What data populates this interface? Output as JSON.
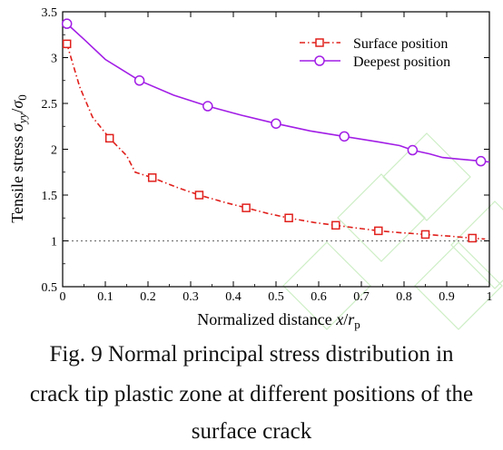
{
  "chart_data": {
    "type": "line",
    "xlabel": "Normalized distance x/r_p",
    "ylabel": "Tensile stress σ_yy/σ_0",
    "xlim": [
      0,
      1
    ],
    "ylim": [
      0.5,
      3.5
    ],
    "xticks": [
      "0",
      "0.1",
      "0.2",
      "0.3",
      "0.4",
      "0.5",
      "0.6",
      "0.7",
      "0.8",
      "0.9",
      "1"
    ],
    "yticks": [
      "0.5",
      "1",
      "1.5",
      "2",
      "2.5",
      "3",
      "3.5"
    ],
    "legend_position": "top-right",
    "reference_line": {
      "y": 1.0,
      "style": "dotted",
      "color": "#777777"
    },
    "series": [
      {
        "name": "Surface position",
        "color": "#e0201c",
        "marker": "square",
        "line_style": "dash-dot",
        "x": [
          0.01,
          0.04,
          0.07,
          0.11,
          0.15,
          0.17,
          0.21,
          0.27,
          0.32,
          0.38,
          0.43,
          0.48,
          0.53,
          0.59,
          0.64,
          0.69,
          0.74,
          0.79,
          0.85,
          0.91,
          0.96,
          0.99
        ],
        "y": [
          3.15,
          2.68,
          2.35,
          2.12,
          1.93,
          1.75,
          1.69,
          1.58,
          1.5,
          1.42,
          1.36,
          1.3,
          1.25,
          1.2,
          1.17,
          1.14,
          1.11,
          1.09,
          1.07,
          1.05,
          1.03,
          1.02
        ],
        "marker_x": [
          0.01,
          0.11,
          0.21,
          0.32,
          0.43,
          0.53,
          0.64,
          0.74,
          0.85,
          0.96
        ],
        "marker_y": [
          3.15,
          2.12,
          1.69,
          1.5,
          1.36,
          1.25,
          1.17,
          1.11,
          1.07,
          1.03
        ]
      },
      {
        "name": "Deepest position",
        "color": "#a21ee6",
        "marker": "circle",
        "line_style": "solid",
        "x": [
          0.01,
          0.05,
          0.1,
          0.18,
          0.26,
          0.34,
          0.42,
          0.5,
          0.58,
          0.66,
          0.74,
          0.79,
          0.82,
          0.86,
          0.89,
          0.98,
          1.0
        ],
        "y": [
          3.37,
          3.2,
          2.98,
          2.75,
          2.59,
          2.47,
          2.37,
          2.28,
          2.2,
          2.14,
          2.08,
          2.04,
          1.99,
          1.95,
          1.91,
          1.87,
          1.86
        ],
        "marker_x": [
          0.01,
          0.18,
          0.34,
          0.5,
          0.66,
          0.82,
          0.98
        ],
        "marker_y": [
          3.37,
          2.75,
          2.47,
          2.28,
          2.14,
          1.99,
          1.87
        ]
      }
    ]
  },
  "axes_text": {
    "ylabel_text": "Tensile stress ",
    "ylabel_sym": "σ",
    "ylabel_sub": "yy",
    "ylabel_slash": "/",
    "ylabel_sym2": "σ",
    "ylabel_sub2": "0",
    "xlabel_text": "Normalized distance ",
    "xlabel_sym": "x",
    "xlabel_slash": "/",
    "xlabel_sym2": "r",
    "xlabel_sub": "p"
  },
  "caption": {
    "line1": "Fig. 9 Normal principal stress distribution in",
    "line2": "crack tip plastic zone at different positions of the",
    "line3": "surface crack"
  }
}
